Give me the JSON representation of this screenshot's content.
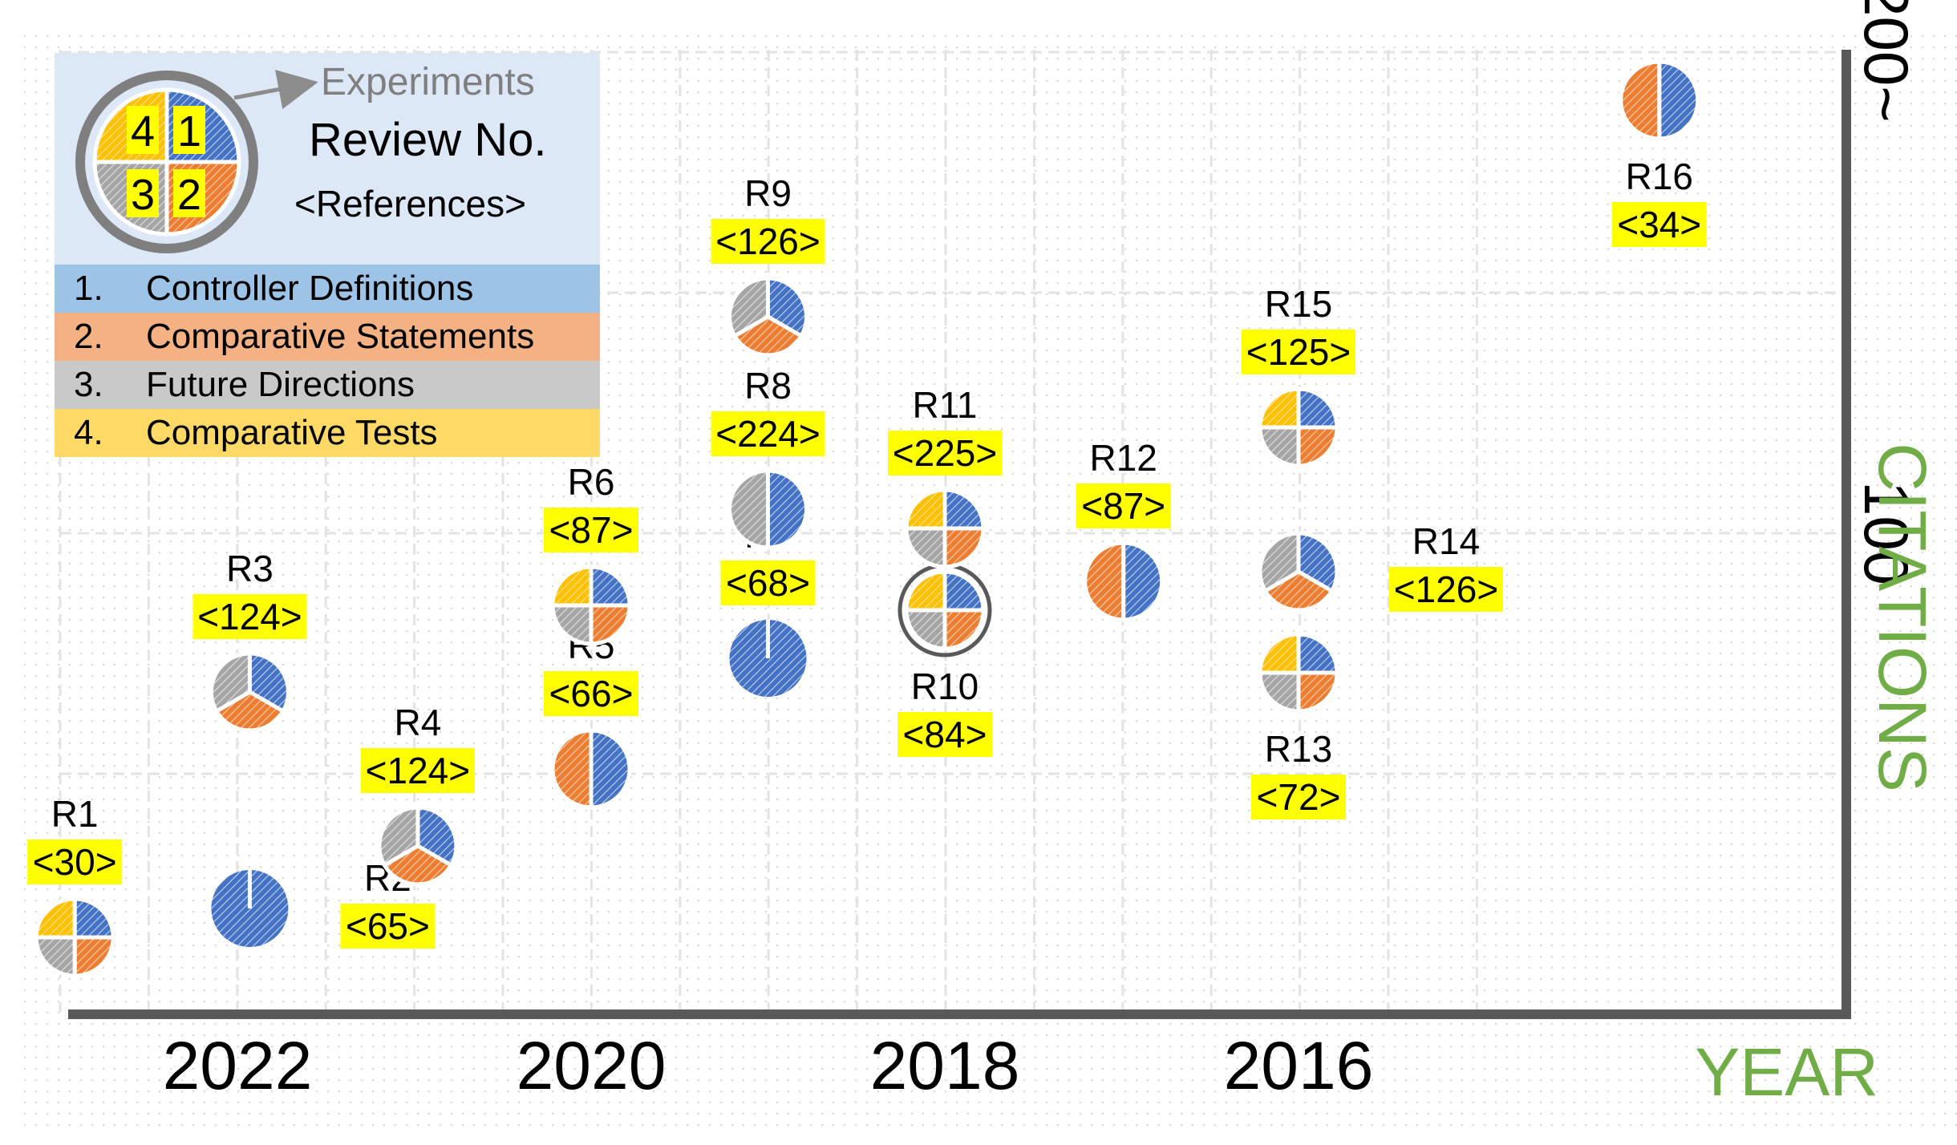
{
  "chart_data": {
    "type": "scatter",
    "xlabel": "YEAR",
    "ylabel": "CITATIONS",
    "x_ticks": [
      "2022",
      "2020",
      "2018",
      "2016"
    ],
    "y_ticks": [
      "100",
      "200~"
    ],
    "x_direction": "descending",
    "legend": {
      "placement": "top-left",
      "title": "Review No.",
      "subtitle": "<References>",
      "arrow_label": "Experiments",
      "example_numbers": [
        "4",
        "1",
        "3",
        "2"
      ],
      "items": [
        {
          "num": "1.",
          "label": "Controller Definitions",
          "color": "#4472c4",
          "band": "#9dc3e6"
        },
        {
          "num": "2.",
          "label": "Comparative Statements",
          "color": "#ed7d31",
          "band": "#f4b183"
        },
        {
          "num": "3.",
          "label": "Future Directions",
          "color": "#a5a5a5",
          "band": "#c9c9c9"
        },
        {
          "num": "4.",
          "label": "Comparative Tests",
          "color": "#ffc000",
          "band": "#ffd966"
        }
      ]
    },
    "points": [
      {
        "label": "R1",
        "refs": "<30>",
        "year": 2022.92,
        "citations": 16,
        "sections": [
          1,
          2,
          3,
          4
        ],
        "experiments": false
      },
      {
        "label": "R2",
        "refs": "<65>",
        "year": 2021.93,
        "citations": 22,
        "sections": [
          1
        ],
        "experiments": false
      },
      {
        "label": "R3",
        "refs": "<124>",
        "year": 2021.93,
        "citations": 67,
        "sections": [
          1,
          2,
          3
        ],
        "experiments": false
      },
      {
        "label": "R4",
        "refs": "<124>",
        "year": 2020.98,
        "citations": 35,
        "sections": [
          1,
          2,
          3
        ],
        "experiments": false
      },
      {
        "label": "R5",
        "refs": "<66>",
        "year": 2020.0,
        "citations": 51,
        "sections": [
          1,
          2
        ],
        "experiments": false
      },
      {
        "label": "R6",
        "refs": "<87>",
        "year": 2020.0,
        "citations": 85,
        "sections": [
          1,
          2,
          3,
          4
        ],
        "experiments": false
      },
      {
        "label": "R7",
        "refs": "<68>",
        "year": 2019.0,
        "citations": 74,
        "sections": [
          1
        ],
        "experiments": false
      },
      {
        "label": "R8",
        "refs": "<224>",
        "year": 2019.0,
        "citations": 105,
        "sections": [
          1,
          3
        ],
        "experiments": false
      },
      {
        "label": "R9",
        "refs": "<126>",
        "year": 2019.0,
        "citations": 145,
        "sections": [
          1,
          2,
          3
        ],
        "experiments": false
      },
      {
        "label": "R10",
        "refs": "<84>",
        "year": 2018.0,
        "citations": 84,
        "sections": [
          1,
          2,
          3,
          4
        ],
        "experiments": true
      },
      {
        "label": "R11",
        "refs": "<225>",
        "year": 2018.0,
        "citations": 101,
        "sections": [
          1,
          2,
          3,
          4
        ],
        "experiments": false
      },
      {
        "label": "R12",
        "refs": "<87>",
        "year": 2016.99,
        "citations": 90,
        "sections": [
          1,
          2
        ],
        "experiments": false
      },
      {
        "label": "R13",
        "refs": "<72>",
        "year": 2016.0,
        "citations": 71,
        "sections": [
          1,
          2,
          3,
          4
        ],
        "experiments": false
      },
      {
        "label": "R14",
        "refs": "<126>",
        "year": 2016.0,
        "citations": 92,
        "sections": [
          1,
          2,
          3
        ],
        "experiments": false
      },
      {
        "label": "R15",
        "refs": "<125>",
        "year": 2016.0,
        "citations": 122,
        "sections": [
          1,
          2,
          3,
          4
        ],
        "experiments": false
      },
      {
        "label": "R16",
        "refs": "<34>",
        "year": 2013.96,
        "citations": 190,
        "sections": [
          1,
          2
        ],
        "experiments": false
      }
    ]
  }
}
